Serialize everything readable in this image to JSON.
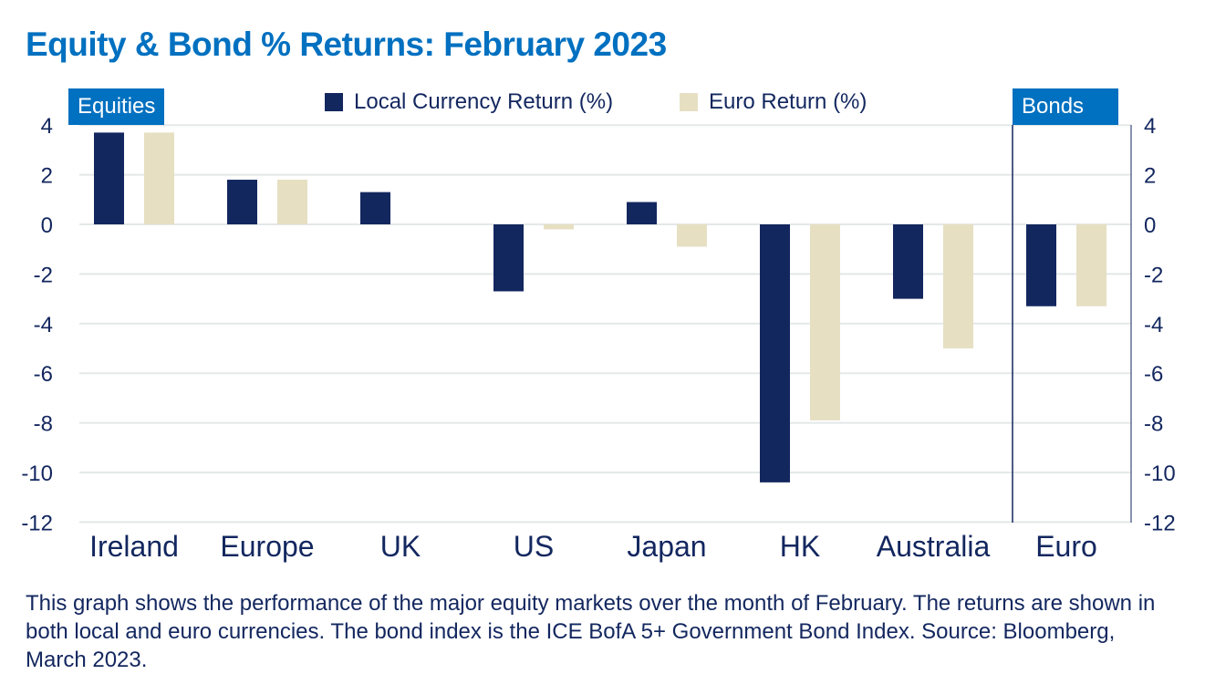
{
  "chart_data": {
    "type": "bar",
    "title": "Equity & Bond % Returns: February 2023",
    "categories": [
      "Ireland",
      "Europe",
      "UK",
      "US",
      "Japan",
      "HK",
      "Australia",
      "Euro"
    ],
    "series": [
      {
        "name": "Local Currency Return (%)",
        "color": "#13275f",
        "values": [
          3.7,
          1.8,
          1.3,
          -2.7,
          0.9,
          -10.4,
          -3.0,
          -3.3
        ]
      },
      {
        "name": "Euro Return (%)",
        "color": "#e6dfc2",
        "values": [
          3.7,
          1.8,
          0,
          -0.2,
          -0.9,
          -7.9,
          -5.0,
          -3.3
        ]
      }
    ],
    "ylim": [
      -12,
      4
    ],
    "yticks": [
      4,
      2,
      0,
      -2,
      -4,
      -6,
      -8,
      -10,
      -12
    ],
    "group_labels": {
      "equities": "Equities",
      "bonds": "Bonds"
    },
    "grid": true,
    "legend": "top-center"
  },
  "caption": "This graph shows the performance of the major equity markets over the month of February. The returns are shown in both local and euro currencies. The bond index is the ICE BofA 5+ Government Bond Index. Source: Bloomberg, March 2023."
}
